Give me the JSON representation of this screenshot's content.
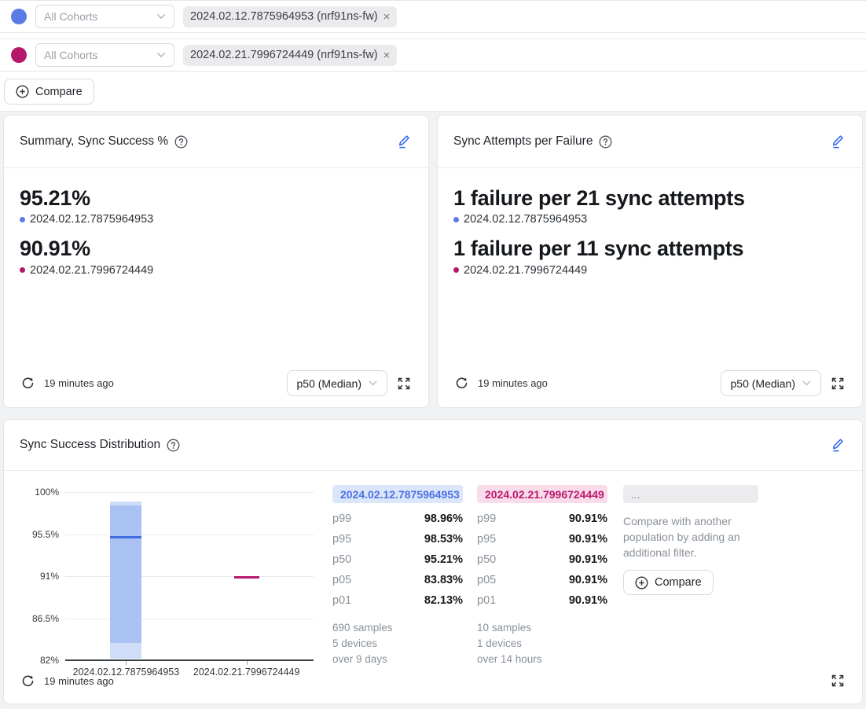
{
  "colors": {
    "cohort_a": "#5b7ce4",
    "cohort_b": "#b5176b",
    "cohort_a_box_light": "#cfddf8",
    "cohort_a_box_mid": "#a9c2f3",
    "cohort_a_median": "#3f6ee2",
    "chip_a_bg": "#dce6fa",
    "chip_a_text": "#4a71e4",
    "chip_b_bg": "#f9dcea",
    "chip_b_text": "#bb186e",
    "edit_icon": "#2563eb"
  },
  "filters": {
    "rows": [
      {
        "select_placeholder": "All Cohorts",
        "tag": "2024.02.12.7875964953 (nrf91ns-fw)",
        "remove_label": "×"
      },
      {
        "select_placeholder": "All Cohorts",
        "tag": "2024.02.21.7996724449 (nrf91ns-fw)",
        "remove_label": "×"
      }
    ],
    "compare_label": "Compare"
  },
  "cards": {
    "summary": {
      "title": "Summary, Sync Success %",
      "entries": [
        {
          "value": "95.21%",
          "label": "2024.02.12.7875964953"
        },
        {
          "value": "90.91%",
          "label": "2024.02.21.7996724449"
        }
      ],
      "footer": {
        "updated": "19 minutes ago",
        "percentile_selector": "p50 (Median)"
      }
    },
    "attempts": {
      "title": "Sync Attempts per Failure",
      "entries": [
        {
          "value": "1 failure per 21 sync attempts",
          "label": "2024.02.12.7875964953"
        },
        {
          "value": "1 failure per 11 sync attempts",
          "label": "2024.02.21.7996724449"
        }
      ],
      "footer": {
        "updated": "19 minutes ago",
        "percentile_selector": "p50 (Median)"
      }
    },
    "distribution": {
      "title": "Sync Success Distribution",
      "footer": {
        "updated": "19 minutes ago"
      },
      "populations": [
        {
          "name": "2024.02.12.7875964953",
          "percentiles": [
            {
              "label": "p99",
              "value": "98.96%"
            },
            {
              "label": "p95",
              "value": "98.53%"
            },
            {
              "label": "p50",
              "value": "95.21%"
            },
            {
              "label": "p05",
              "value": "83.83%"
            },
            {
              "label": "p01",
              "value": "82.13%"
            }
          ],
          "stats": [
            "690 samples",
            "5 devices",
            "over 9 days"
          ]
        },
        {
          "name": "2024.02.21.7996724449",
          "percentiles": [
            {
              "label": "p99",
              "value": "90.91%"
            },
            {
              "label": "p95",
              "value": "90.91%"
            },
            {
              "label": "p50",
              "value": "90.91%"
            },
            {
              "label": "p05",
              "value": "90.91%"
            },
            {
              "label": "p01",
              "value": "90.91%"
            }
          ],
          "stats": [
            "10 samples",
            "1 devices",
            "over 14 hours"
          ]
        }
      ],
      "compare_hint": {
        "header": "...",
        "text": "Compare with another population by adding an additional filter.",
        "button_label": "Compare"
      }
    }
  },
  "chart_data": {
    "type": "boxplot",
    "title": "Sync Success Distribution",
    "grid": true,
    "legend_position": "none",
    "ylim": [
      82,
      100
    ],
    "y_ticks": [
      {
        "label": "100%",
        "value": 100
      },
      {
        "label": "95.5%",
        "value": 95.5
      },
      {
        "label": "91%",
        "value": 91
      },
      {
        "label": "86.5%",
        "value": 86.5
      },
      {
        "label": "82%",
        "value": 82
      }
    ],
    "categories": [
      "2024.02.12.7875964953",
      "2024.02.21.7996724449"
    ],
    "series": [
      {
        "name": "2024.02.12.7875964953",
        "color": "#3f6ee2",
        "box_light": "#cfddf8",
        "box_mid": "#a9c2f3",
        "p01": 82.13,
        "p05": 83.83,
        "p50": 95.21,
        "p95": 98.53,
        "p99": 98.96
      },
      {
        "name": "2024.02.21.7996724449",
        "color": "#b5186c",
        "box_light": "#f9dcea",
        "box_mid": "#f0b9d4",
        "p01": 90.91,
        "p05": 90.91,
        "p50": 90.91,
        "p95": 90.91,
        "p99": 90.91
      }
    ]
  }
}
